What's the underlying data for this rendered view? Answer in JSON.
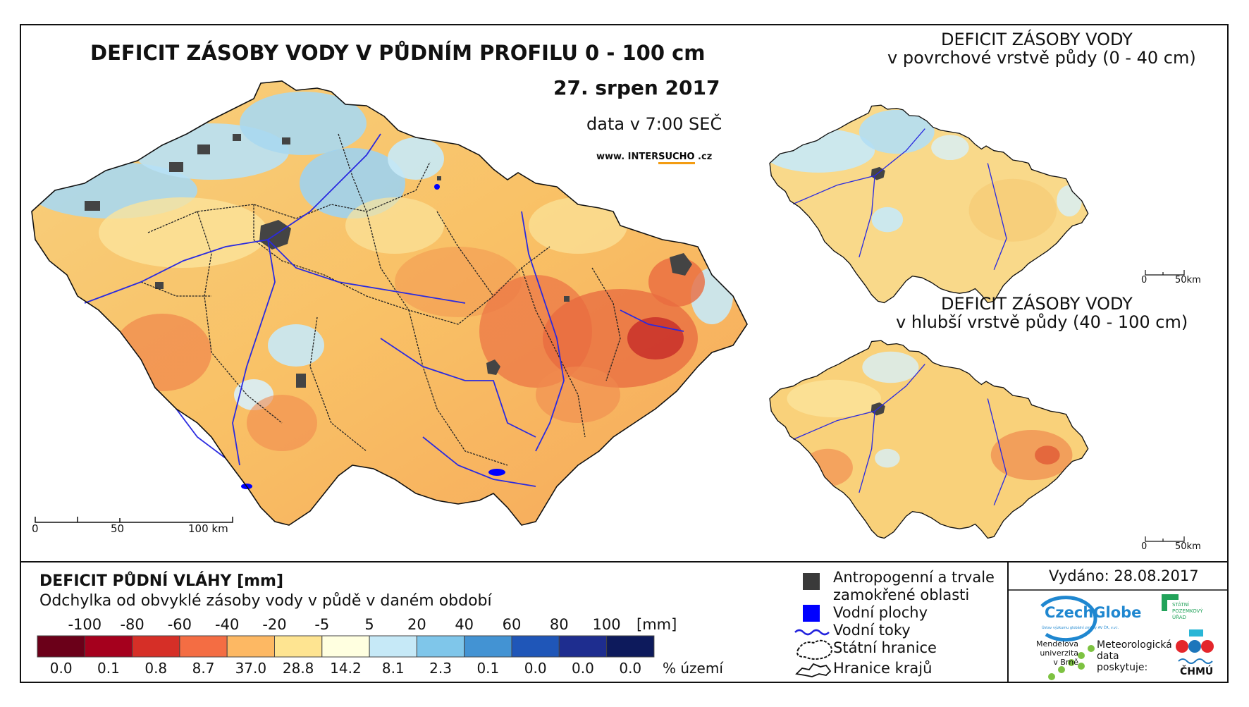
{
  "main_map": {
    "title": "DEFICIT ZÁSOBY VODY V PŮDNÍM PROFILU 0 - 100 cm",
    "date": "27. srpen 2017",
    "time": "data v 7:00 SEČ",
    "website": {
      "prefix": "www. INTER",
      "highlight": "SUCHO",
      "suffix": " .cz"
    },
    "scalebar": {
      "labels": [
        "0",
        "50",
        "100 km"
      ]
    }
  },
  "inset_top": {
    "title": "DEFICIT ZÁSOBY VODY",
    "subtitle": "v povrchové vrstvě půdy (0 - 40 cm)",
    "scalebar": {
      "labels": [
        "0",
        "50km"
      ]
    }
  },
  "inset_bottom": {
    "title": "DEFICIT ZÁSOBY VODY",
    "subtitle": "v hlubší vrstvě půdy (40 - 100 cm)",
    "scalebar": {
      "labels": [
        "0",
        "50km"
      ]
    }
  },
  "legend": {
    "title": "DEFICIT PŮDNÍ VLÁHY [mm]",
    "subtitle": "Odchylka od obvyklé zásoby vody v půdě v daném období",
    "breaks": [
      "-100",
      "-80",
      "-60",
      "-40",
      "-20",
      "-5",
      "5",
      "20",
      "40",
      "60",
      "80",
      "100"
    ],
    "unit": "[mm]",
    "colors": [
      "#6b0019",
      "#a5001d",
      "#d62f27",
      "#f46d43",
      "#fdb863",
      "#fee491",
      "#ffffe0",
      "#c6e9f7",
      "#7fc6ea",
      "#4393d3",
      "#1f56b8",
      "#1e2d8f",
      "#0d1a5c"
    ],
    "percentages": [
      "0.0",
      "0.1",
      "0.8",
      "8.7",
      "37.0",
      "28.8",
      "14.2",
      "8.1",
      "2.3",
      "0.1",
      "0.0",
      "0.0",
      "0.0"
    ],
    "percent_label": "% území"
  },
  "symbols": {
    "anthropogenic_line1": "Antropogenní a trvale",
    "anthropogenic_line2": "zamokřené oblasti",
    "water_bodies": "Vodní plochy",
    "rivers": "Vodní toky",
    "state_border": "Státní hranice",
    "region_border": "Hranice krajů",
    "colors": {
      "anthropogenic": "#3a3a3a",
      "water_bodies": "#0000ff",
      "rivers": "#2222dd"
    }
  },
  "issued": "Vydáno: 28.08.2017",
  "logos": {
    "czechglobe": "CzechGlobe",
    "czechglobe_caption": "Ústav výzkumu globální změny AV ČR, v.v.i.",
    "spu_lines": [
      "STÁTNÍ",
      "POZEMKOVÝ",
      "ÚŘAD"
    ],
    "mendelu_lines": [
      "Mendelova",
      "univerzita",
      "v Brně"
    ],
    "meteo_lines": [
      "Meteorologická",
      "data",
      "poskytuje:"
    ],
    "chmu": "ČHMÚ"
  }
}
